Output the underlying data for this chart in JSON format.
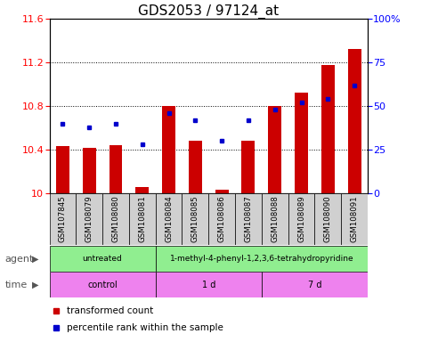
{
  "title": "GDS2053 / 97124_at",
  "samples": [
    "GSM107845",
    "GSM108079",
    "GSM108080",
    "GSM108081",
    "GSM108084",
    "GSM108085",
    "GSM108086",
    "GSM108087",
    "GSM108088",
    "GSM108089",
    "GSM108090",
    "GSM108091"
  ],
  "transformed_count": [
    10.43,
    10.42,
    10.44,
    10.06,
    10.8,
    10.48,
    10.03,
    10.48,
    10.8,
    10.92,
    11.18,
    11.32
  ],
  "percentile_rank": [
    40,
    38,
    40,
    28,
    46,
    42,
    30,
    42,
    48,
    52,
    54,
    62
  ],
  "ylim_left": [
    10.0,
    11.6
  ],
  "ylim_right": [
    0,
    100
  ],
  "yticks_left": [
    10.0,
    10.4,
    10.8,
    11.2,
    11.6
  ],
  "ytick_labels_left": [
    "10",
    "10.4",
    "10.8",
    "11.2",
    "11.6"
  ],
  "yticks_right": [
    0,
    25,
    50,
    75,
    100
  ],
  "ytick_labels_right": [
    "0",
    "25",
    "50",
    "75",
    "100%"
  ],
  "bar_color": "#cc0000",
  "dot_color": "#0000cc",
  "agent_groups": [
    {
      "label": "untreated",
      "start": 0,
      "end": 4,
      "color": "#90ee90"
    },
    {
      "label": "1-methyl-4-phenyl-1,2,3,6-tetrahydropyridine",
      "start": 4,
      "end": 12,
      "color": "#90ee90"
    }
  ],
  "time_groups": [
    {
      "label": "control",
      "start": 0,
      "end": 4,
      "color": "#ee82ee"
    },
    {
      "label": "1 d",
      "start": 4,
      "end": 8,
      "color": "#ee82ee"
    },
    {
      "label": "7 d",
      "start": 8,
      "end": 12,
      "color": "#ee82ee"
    }
  ],
  "legend_items": [
    {
      "label": "transformed count",
      "color": "#cc0000"
    },
    {
      "label": "percentile rank within the sample",
      "color": "#0000cc"
    }
  ],
  "sample_box_color": "#d0d0d0",
  "title_fontsize": 11,
  "tick_fontsize": 8,
  "label_fontsize": 8
}
